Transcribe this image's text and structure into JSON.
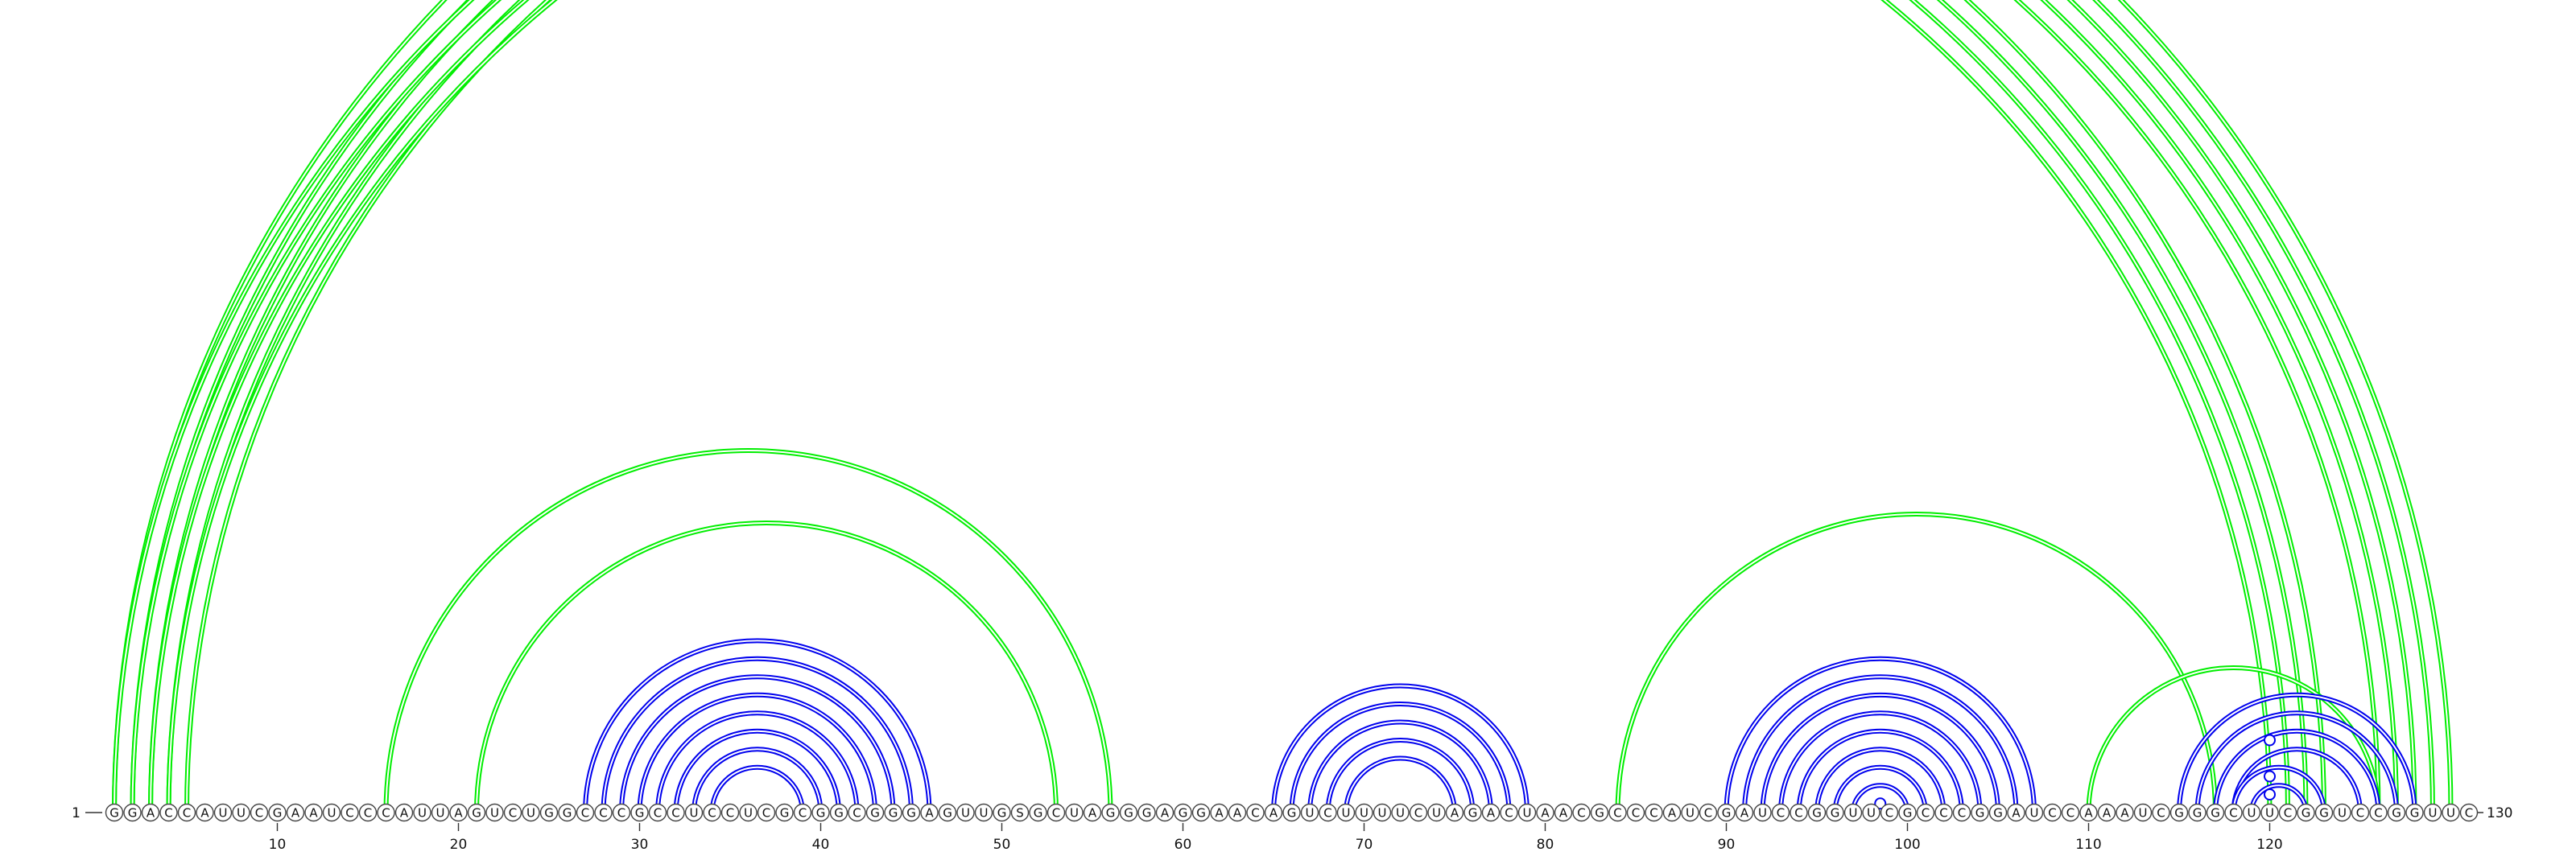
{
  "diagram": {
    "sequence": "GGACCAUUCGAAUCCCAUUAGUCUGGCCCGCCUCCUCGCGGCGGGAGUUGSGCUAGGGAGGAACAGUCUUUUCUAGACUAACGCCCAUCGAUCCGGUUCGCCCGGAUCCAAAUCGGGCUUCGGUCCGGUUC",
    "start_label": "1",
    "end_label": "130",
    "ticks": [
      10,
      20,
      30,
      40,
      50,
      60,
      70,
      80,
      90,
      100,
      110,
      120
    ],
    "colors": {
      "nested": "#0000ee",
      "crossing": "#00ee00"
    },
    "arcs": [
      {
        "i": 1,
        "j": 130,
        "color": "crossing"
      },
      {
        "i": 2,
        "j": 129,
        "color": "crossing"
      },
      {
        "i": 3,
        "j": 128,
        "color": "crossing"
      },
      {
        "i": 4,
        "j": 127,
        "color": "crossing"
      },
      {
        "i": 5,
        "j": 126,
        "color": "crossing"
      },
      {
        "i": 1,
        "j": 123,
        "color": "crossing"
      },
      {
        "i": 2,
        "j": 122,
        "color": "crossing"
      },
      {
        "i": 3,
        "j": 121,
        "color": "crossing"
      },
      {
        "i": 4,
        "j": 120,
        "color": "crossing"
      },
      {
        "i": 16,
        "j": 56,
        "color": "crossing"
      },
      {
        "i": 21,
        "j": 53,
        "color": "crossing"
      },
      {
        "i": 84,
        "j": 117,
        "color": "crossing"
      },
      {
        "i": 110,
        "j": 126,
        "color": "crossing"
      },
      {
        "i": 27,
        "j": 46,
        "color": "nested"
      },
      {
        "i": 28,
        "j": 45,
        "color": "nested"
      },
      {
        "i": 29,
        "j": 44,
        "color": "nested"
      },
      {
        "i": 30,
        "j": 43,
        "color": "nested"
      },
      {
        "i": 31,
        "j": 42,
        "color": "nested"
      },
      {
        "i": 32,
        "j": 41,
        "color": "nested"
      },
      {
        "i": 33,
        "j": 40,
        "color": "nested"
      },
      {
        "i": 34,
        "j": 39,
        "color": "nested"
      },
      {
        "i": 65,
        "j": 79,
        "color": "nested"
      },
      {
        "i": 66,
        "j": 78,
        "color": "nested"
      },
      {
        "i": 67,
        "j": 77,
        "color": "nested"
      },
      {
        "i": 68,
        "j": 76,
        "color": "nested"
      },
      {
        "i": 69,
        "j": 75,
        "color": "nested"
      },
      {
        "i": 90,
        "j": 107,
        "color": "nested"
      },
      {
        "i": 91,
        "j": 106,
        "color": "nested"
      },
      {
        "i": 92,
        "j": 105,
        "color": "nested"
      },
      {
        "i": 93,
        "j": 104,
        "color": "nested"
      },
      {
        "i": 94,
        "j": 103,
        "color": "nested"
      },
      {
        "i": 95,
        "j": 102,
        "color": "nested"
      },
      {
        "i": 96,
        "j": 101,
        "color": "nested"
      },
      {
        "i": 97,
        "j": 100,
        "color": "nested"
      },
      {
        "i": 115,
        "j": 128,
        "color": "nested"
      },
      {
        "i": 116,
        "j": 127,
        "color": "nested"
      },
      {
        "i": 117,
        "j": 126,
        "color": "nested"
      },
      {
        "i": 118,
        "j": 125,
        "color": "nested"
      },
      {
        "i": 118,
        "j": 123,
        "color": "nested"
      },
      {
        "i": 119,
        "j": 122,
        "color": "nested"
      }
    ],
    "noncanonical_markers": [
      {
        "i": 1,
        "j": 130,
        "color": "crossing"
      },
      {
        "i": 98,
        "j": 99,
        "color": "nested"
      },
      {
        "i": 119,
        "j": 121,
        "color": "nested"
      },
      {
        "i": 118,
        "j": 122,
        "color": "nested"
      },
      {
        "i": 116,
        "j": 124,
        "color": "nested"
      }
    ]
  }
}
